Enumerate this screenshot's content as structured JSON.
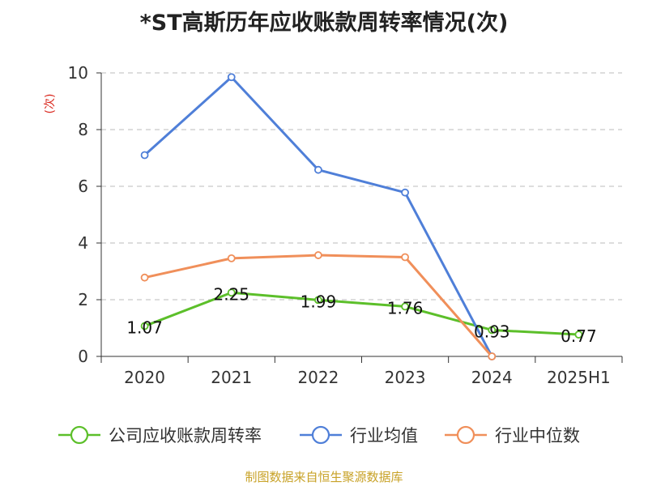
{
  "colors": {
    "company": "#5cbf2a",
    "industry_avg": "#4f7fd8",
    "industry_median": "#f08f5a",
    "grid": "#bbbbbb",
    "axis": "#333333",
    "unit": "#d9261c",
    "source": "#c8a227"
  },
  "source_note": "制图数据来自恒生聚源数据库",
  "chart_data": {
    "type": "line",
    "title": "*ST高斯历年应收账款周转率情况(次)",
    "ylabel": "(次)",
    "xlabel": "",
    "ylim": [
      0,
      10
    ],
    "yticks": [
      "0",
      "2",
      "4",
      "6",
      "8",
      "10"
    ],
    "categories": [
      "2020",
      "2021",
      "2022",
      "2023",
      "2024",
      "2025H1"
    ],
    "grid": true,
    "legend_position": "bottom",
    "series": [
      {
        "name": "公司应收账款周转率",
        "key": "company",
        "values": [
          1.07,
          2.25,
          1.99,
          1.76,
          0.93,
          0.77
        ],
        "labels": [
          "1.07",
          "2.25",
          "1.99",
          "1.76",
          "0.93",
          "0.77"
        ]
      },
      {
        "name": "行业均值",
        "key": "industry_avg",
        "values": [
          7.1,
          9.85,
          6.58,
          5.78,
          0.0,
          null
        ]
      },
      {
        "name": "行业中位数",
        "key": "industry_median",
        "values": [
          2.78,
          3.46,
          3.57,
          3.5,
          0.0,
          null
        ]
      }
    ]
  }
}
